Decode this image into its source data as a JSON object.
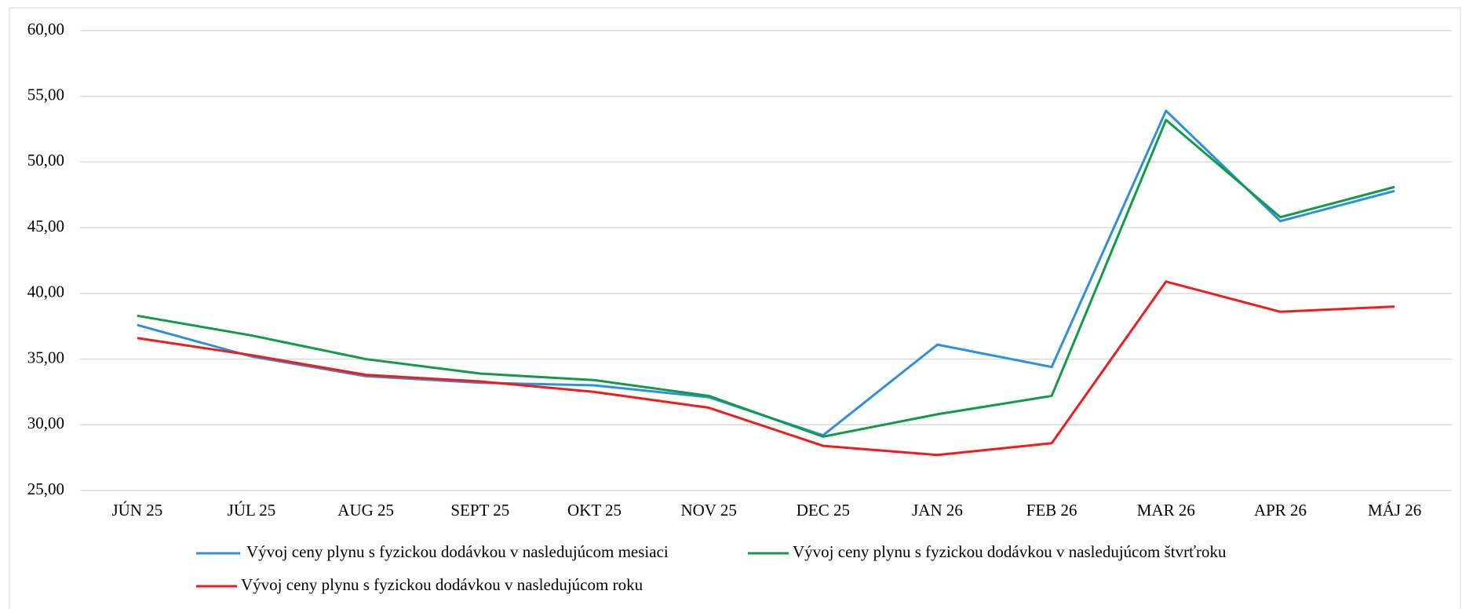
{
  "chart_data": {
    "type": "line",
    "categories": [
      "JÚN 25",
      "JÚL 25",
      "AUG 25",
      "SEPT 25",
      "OKT 25",
      "NOV 25",
      "DEC 25",
      "JAN 26",
      "FEB 26",
      "MAR 26",
      "APR 26",
      "MÁJ 26"
    ],
    "series": [
      {
        "name": "Vývoj ceny plynu s fyzickou dodávkou v nasledujúcom mesiaci",
        "color": "#2e8fde",
        "values": [
          37.6,
          35.2,
          33.7,
          33.2,
          33.0,
          32.1,
          29.2,
          36.1,
          34.4,
          53.9,
          45.5,
          47.8
        ]
      },
      {
        "name": "Vývoj ceny plynu s fyzickou dodávkou v nasledujúcom štvrťroku",
        "color": "#0f9b48",
        "values": [
          38.3,
          36.8,
          35.0,
          33.9,
          33.4,
          32.2,
          29.1,
          30.8,
          32.2,
          53.2,
          45.8,
          48.1
        ]
      },
      {
        "name": "Vývoj ceny plynu s fyzickou dodávkou v nasledujúcom roku",
        "color": "#ee1c1c",
        "values": [
          36.6,
          35.3,
          33.8,
          33.3,
          32.5,
          31.3,
          28.4,
          27.7,
          28.6,
          40.9,
          38.6,
          39.0
        ]
      }
    ],
    "ylim": [
      25,
      60
    ],
    "yticks": [
      {
        "value": 25,
        "label": "25,00"
      },
      {
        "value": 30,
        "label": "30,00"
      },
      {
        "value": 35,
        "label": "35,00"
      },
      {
        "value": 40,
        "label": "40,00"
      },
      {
        "value": 45,
        "label": "45,00"
      },
      {
        "value": 50,
        "label": "50,00"
      },
      {
        "value": 55,
        "label": "55,00"
      },
      {
        "value": 60,
        "label": "60,00"
      }
    ],
    "grid": true
  }
}
